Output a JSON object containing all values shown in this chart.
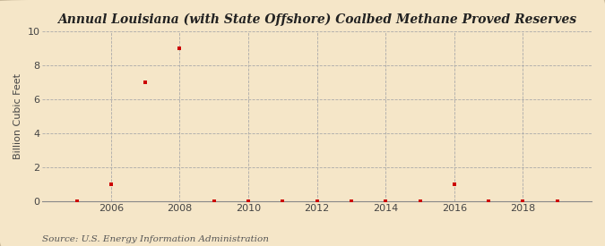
{
  "title": "Annual Louisiana (with State Offshore) Coalbed Methane Proved Reserves",
  "ylabel": "Billion Cubic Feet",
  "source_text": "Source: U.S. Energy Information Administration",
  "background_color": "#f5e6c8",
  "plot_bg_color": "#f5e6c8",
  "outer_bg_color": "#f5e6c8",
  "x_data": [
    2005,
    2006,
    2007,
    2008,
    2009,
    2010,
    2011,
    2012,
    2013,
    2014,
    2015,
    2016,
    2017,
    2018,
    2019
  ],
  "y_data": [
    0,
    1,
    7,
    9,
    0,
    0,
    0,
    0,
    0,
    0,
    0,
    1,
    0,
    0,
    0
  ],
  "xlim": [
    2004.0,
    2020.0
  ],
  "ylim": [
    0,
    10
  ],
  "yticks": [
    0,
    2,
    4,
    6,
    8,
    10
  ],
  "xticks": [
    2006,
    2008,
    2010,
    2012,
    2014,
    2016,
    2018
  ],
  "marker_color": "#cc0000",
  "marker": "s",
  "marker_size": 3.5,
  "grid_color": "#aaaaaa",
  "title_fontsize": 10,
  "label_fontsize": 8,
  "tick_fontsize": 8,
  "source_fontsize": 7.5
}
